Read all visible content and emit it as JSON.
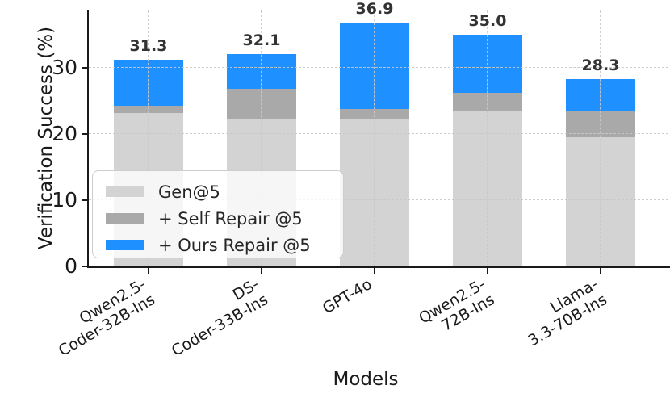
{
  "chart_data": {
    "type": "bar",
    "stacked": true,
    "title": "",
    "xlabel": "Models",
    "ylabel": "Verification Success (%)",
    "ylim": [
      0,
      38.7
    ],
    "yticks": [
      0,
      10,
      20,
      30
    ],
    "grid": {
      "style": "dashed",
      "axes": "both",
      "color": "#CCCCCC"
    },
    "legend": {
      "position": "lower-left"
    },
    "categories": [
      "Qwen2.5-\nCoder-32B-Ins",
      "DS-\nCoder-33B-Ins",
      "GPT-4o",
      "Qwen2.5-\n72B-Ins",
      "Llama-\n3.3-70B-Ins"
    ],
    "series": [
      {
        "name": "Gen@5",
        "color": "#D3D3D3",
        "cumulative_values": [
          23.2,
          22.2,
          22.2,
          23.4,
          19.5
        ]
      },
      {
        "name": "+ Self Repair @5",
        "color": "#A9A9A9",
        "cumulative_values": [
          24.3,
          26.9,
          23.8,
          26.3,
          23.5
        ]
      },
      {
        "name": "+ Ours Repair @5",
        "color": "#1E90FF",
        "cumulative_values": [
          31.3,
          32.1,
          36.9,
          35.0,
          28.3
        ]
      }
    ],
    "bar_total_labels": [
      "31.3",
      "32.1",
      "36.9",
      "35.0",
      "28.3"
    ]
  }
}
